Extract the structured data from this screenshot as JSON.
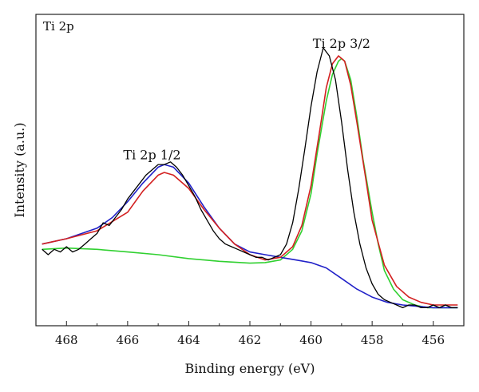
{
  "chart_data": {
    "type": "line",
    "title": "Ti 2p",
    "xlabel": "Binding energy (eV)",
    "ylabel": "Intensity (a.u.)",
    "xlim": [
      469,
      455
    ],
    "x_reversed": true,
    "ylim": [
      0,
      100
    ],
    "y_ticks_shown": false,
    "grid": false,
    "x_ticks": [
      468,
      466,
      464,
      462,
      460,
      458,
      456
    ],
    "annotations": [
      {
        "text": "Ti 2p 1/2",
        "x": 465.2,
        "y": 55
      },
      {
        "text": "Ti 2p 3/2",
        "x": 459.0,
        "y": 97
      }
    ],
    "series": [
      {
        "color": "#000000",
        "x": [
          468.8,
          468.6,
          468.4,
          468.2,
          468.0,
          467.8,
          467.6,
          467.4,
          467.2,
          467.0,
          466.8,
          466.6,
          466.4,
          466.2,
          466.0,
          465.8,
          465.6,
          465.4,
          465.2,
          465.0,
          464.8,
          464.6,
          464.4,
          464.2,
          464.0,
          463.8,
          463.6,
          463.4,
          463.2,
          463.0,
          462.8,
          462.6,
          462.4,
          462.2,
          462.0,
          461.8,
          461.6,
          461.4,
          461.2,
          461.0,
          460.8,
          460.6,
          460.4,
          460.2,
          460.0,
          459.8,
          459.6,
          459.4,
          459.2,
          459.0,
          458.8,
          458.6,
          458.4,
          458.2,
          458.0,
          457.8,
          457.6,
          457.4,
          457.2,
          457.0,
          456.8,
          456.6,
          456.4,
          456.2,
          456.0,
          455.8,
          455.6,
          455.4,
          455.2
        ],
        "y": [
          24,
          22,
          24,
          23,
          25,
          23,
          24,
          26,
          28,
          30,
          34,
          33,
          36,
          39,
          43,
          46,
          49,
          52,
          54,
          56,
          56,
          57,
          55,
          52,
          48,
          44,
          39,
          35,
          31,
          28,
          26,
          25,
          24,
          23,
          22,
          21,
          21,
          20,
          21,
          22,
          26,
          34,
          47,
          62,
          78,
          91,
          100,
          97,
          88,
          72,
          54,
          38,
          26,
          17,
          11,
          7,
          5,
          4,
          3,
          2,
          3,
          3,
          2,
          2,
          3,
          2,
          3,
          2,
          2
        ]
      },
      {
        "color": "#d32020",
        "x": [
          468.8,
          468.0,
          467.0,
          466.0,
          465.5,
          465.0,
          464.8,
          464.5,
          464.0,
          463.5,
          463.0,
          462.5,
          462.0,
          461.5,
          461.0,
          460.6,
          460.3,
          460.0,
          459.7,
          459.5,
          459.3,
          459.1,
          458.9,
          458.7,
          458.5,
          458.2,
          458.0,
          457.6,
          457.2,
          456.8,
          456.4,
          456.0,
          455.5,
          455.2
        ],
        "y": [
          26,
          28,
          31,
          38,
          46,
          52,
          53,
          52,
          47,
          39,
          32,
          26,
          22,
          20,
          21,
          25,
          33,
          48,
          70,
          85,
          94,
          97,
          95,
          86,
          72,
          50,
          35,
          18,
          10,
          6,
          4,
          3,
          3,
          3
        ]
      },
      {
        "color": "#2020c8",
        "x": [
          468.8,
          468.0,
          467.0,
          466.5,
          466.0,
          465.5,
          465.0,
          464.8,
          464.5,
          464.0,
          463.5,
          463.0,
          462.5,
          462.0,
          461.5,
          461.0,
          460.5,
          460.0,
          459.5,
          459.0,
          458.5,
          458.0,
          457.5,
          457.0,
          456.5,
          456.0,
          455.5,
          455.2
        ],
        "y": [
          26,
          28,
          32,
          36,
          42,
          49,
          55,
          56,
          55,
          49,
          40,
          32,
          26,
          23,
          22,
          21,
          20,
          19,
          17,
          13,
          9,
          6,
          4,
          3,
          2.5,
          2,
          2,
          2
        ]
      },
      {
        "color": "#30d030",
        "x": [
          468.8,
          468.0,
          467.0,
          466.0,
          465.0,
          464.0,
          463.0,
          462.0,
          461.5,
          461.0,
          460.6,
          460.3,
          460.0,
          459.8,
          459.5,
          459.3,
          459.1,
          459.0,
          458.9,
          458.7,
          458.5,
          458.3,
          458.0,
          457.8,
          457.6,
          457.3,
          457.0,
          456.6,
          456.2,
          455.8,
          455.5,
          455.2
        ],
        "y": [
          24,
          24.5,
          24,
          23,
          22,
          20.5,
          19.5,
          18.8,
          19,
          20,
          24,
          31,
          45,
          60,
          80,
          90,
          95,
          96,
          95,
          88,
          74,
          58,
          38,
          26,
          16,
          9,
          5,
          3,
          2,
          2,
          2,
          2
        ]
      }
    ]
  }
}
